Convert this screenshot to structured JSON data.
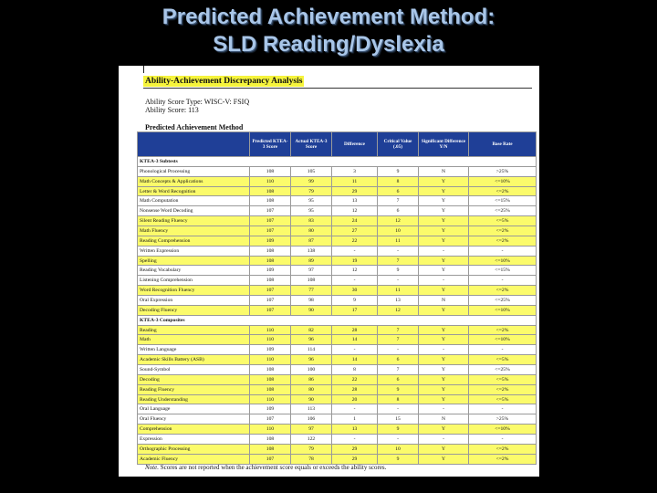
{
  "slide": {
    "title_line1": "Predicted Achievement Method:",
    "title_line2": "SLD Reading/Dyslexia"
  },
  "doc": {
    "heading": "Ability-Achievement Discrepancy Analysis",
    "ability_type": "Ability Score Type: WISC-V: FSIQ",
    "ability_score": "Ability Score: 113",
    "section_title": "Predicted Achievement Method",
    "columns": [
      "",
      "Predicted KTEA-3 Score",
      "Actual KTEA-3 Score",
      "Difference",
      "Critical Value (.05)",
      "Significant Difference Y/N",
      "Base Rate"
    ],
    "rows": [
      {
        "group": true,
        "name": "KTEA-3 Subtests"
      },
      {
        "name": "Phonological Processing",
        "cells": [
          "108",
          "105",
          "3",
          "9",
          "N",
          ">25%"
        ],
        "hl": false
      },
      {
        "name": "Math Concepts & Applications",
        "cells": [
          "110",
          "99",
          "11",
          "8",
          "Y",
          "<=10%"
        ],
        "hl": true
      },
      {
        "name": "Letter & Word Recognition",
        "cells": [
          "108",
          "79",
          "29",
          "6",
          "Y",
          "<=2%"
        ],
        "hl": true
      },
      {
        "name": "Math Computation",
        "cells": [
          "108",
          "95",
          "13",
          "7",
          "Y",
          "<=15%"
        ],
        "hl": false
      },
      {
        "name": "Nonsense Word Decoding",
        "cells": [
          "107",
          "95",
          "12",
          "6",
          "Y",
          "<=25%"
        ],
        "hl": false
      },
      {
        "name": "Silent Reading Fluency",
        "cells": [
          "107",
          "83",
          "24",
          "12",
          "Y",
          "<=5%"
        ],
        "hl": true
      },
      {
        "name": "Math Fluency",
        "cells": [
          "107",
          "80",
          "27",
          "10",
          "Y",
          "<=2%"
        ],
        "hl": true
      },
      {
        "name": "Reading Comprehension",
        "cells": [
          "109",
          "87",
          "22",
          "11",
          "Y",
          "<=2%"
        ],
        "hl": true
      },
      {
        "name": "Written Expression",
        "cells": [
          "108",
          "138",
          "-",
          "-",
          "-",
          "-"
        ],
        "hl": false
      },
      {
        "name": "Spelling",
        "cells": [
          "108",
          "89",
          "19",
          "7",
          "Y",
          "<=10%"
        ],
        "hl": true
      },
      {
        "name": "Reading Vocabulary",
        "cells": [
          "109",
          "97",
          "12",
          "9",
          "Y",
          "<=15%"
        ],
        "hl": false
      },
      {
        "name": "Listening Comprehension",
        "cells": [
          "108",
          "108",
          "-",
          "-",
          "-",
          "-"
        ],
        "hl": false
      },
      {
        "name": "Word Recognition Fluency",
        "cells": [
          "107",
          "77",
          "30",
          "11",
          "Y",
          "<=2%"
        ],
        "hl": true
      },
      {
        "name": "Oral Expression",
        "cells": [
          "107",
          "98",
          "9",
          "13",
          "N",
          "<=25%"
        ],
        "hl": false
      },
      {
        "name": "Decoding Fluency",
        "cells": [
          "107",
          "90",
          "17",
          "12",
          "Y",
          "<=10%"
        ],
        "hl": true
      },
      {
        "group": true,
        "name": "KTEA-3 Composites"
      },
      {
        "name": "Reading",
        "cells": [
          "110",
          "82",
          "28",
          "7",
          "Y",
          "<=2%"
        ],
        "hl": true
      },
      {
        "name": "Math",
        "cells": [
          "110",
          "96",
          "14",
          "7",
          "Y",
          "<=10%"
        ],
        "hl": true
      },
      {
        "name": "Written Language",
        "cells": [
          "109",
          "114",
          "-",
          "-",
          "-",
          "-"
        ],
        "hl": false
      },
      {
        "name": "Academic Skills Battery (ASB)",
        "cells": [
          "110",
          "96",
          "14",
          "6",
          "Y",
          "<=5%"
        ],
        "hl": true
      },
      {
        "name": "Sound-Symbol",
        "cells": [
          "108",
          "100",
          "8",
          "7",
          "Y",
          "<=25%"
        ],
        "hl": false
      },
      {
        "name": "Decoding",
        "cells": [
          "108",
          "86",
          "22",
          "6",
          "Y",
          "<=5%"
        ],
        "hl": true
      },
      {
        "name": "Reading Fluency",
        "cells": [
          "108",
          "80",
          "28",
          "9",
          "Y",
          "<=2%"
        ],
        "hl": true
      },
      {
        "name": "Reading Understanding",
        "cells": [
          "110",
          "90",
          "20",
          "8",
          "Y",
          "<=5%"
        ],
        "hl": true
      },
      {
        "name": "Oral Language",
        "cells": [
          "109",
          "113",
          "-",
          "-",
          "-",
          "-"
        ],
        "hl": false
      },
      {
        "name": "Oral Fluency",
        "cells": [
          "107",
          "106",
          "1",
          "15",
          "N",
          ">25%"
        ],
        "hl": false
      },
      {
        "name": "Comprehension",
        "cells": [
          "110",
          "97",
          "13",
          "9",
          "Y",
          "<=10%"
        ],
        "hl": true
      },
      {
        "name": "Expression",
        "cells": [
          "108",
          "122",
          "-",
          "-",
          "-",
          "-"
        ],
        "hl": false
      },
      {
        "name": "Orthographic Processing",
        "cells": [
          "108",
          "79",
          "29",
          "10",
          "Y",
          "<=2%"
        ],
        "hl": true
      },
      {
        "name": "Academic Fluency",
        "cells": [
          "107",
          "78",
          "29",
          "9",
          "Y",
          "<=2%"
        ],
        "hl": true
      }
    ],
    "note_label": "Note.",
    "note_text": "Scores are not reported when the achievement score equals or exceeds the ability scores."
  }
}
